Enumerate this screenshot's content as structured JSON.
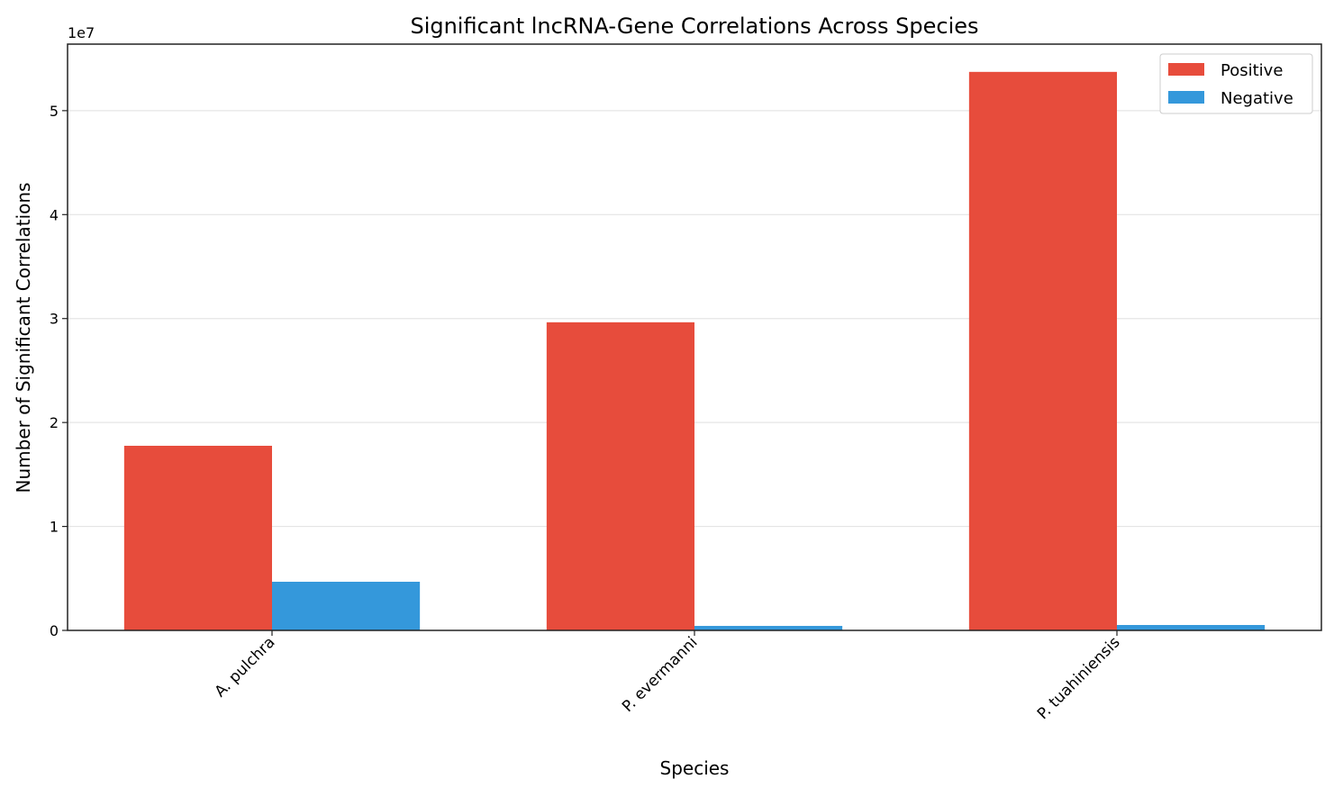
{
  "chart_data": {
    "type": "bar",
    "title": "Significant lncRNA-Gene Correlations Across Species",
    "xlabel": "Species",
    "ylabel": "Number of Significant Correlations",
    "y_offset_label": "1e7",
    "categories": [
      "A. pulchra",
      "P. evermanni",
      "P. tuahiniensis"
    ],
    "series": [
      {
        "name": "Positive",
        "color": "#e74c3c",
        "values": [
          17760000,
          29640000,
          53730000
        ]
      },
      {
        "name": "Negative",
        "color": "#3498db",
        "values": [
          4680000,
          430000,
          520000
        ]
      }
    ],
    "yticks": [
      0,
      10000000,
      20000000,
      30000000,
      40000000,
      50000000
    ],
    "ytick_labels": [
      "0",
      "1",
      "2",
      "3",
      "4",
      "5"
    ],
    "ylim": [
      0,
      56400000
    ],
    "grid": "y",
    "legend_position": "top-right"
  }
}
